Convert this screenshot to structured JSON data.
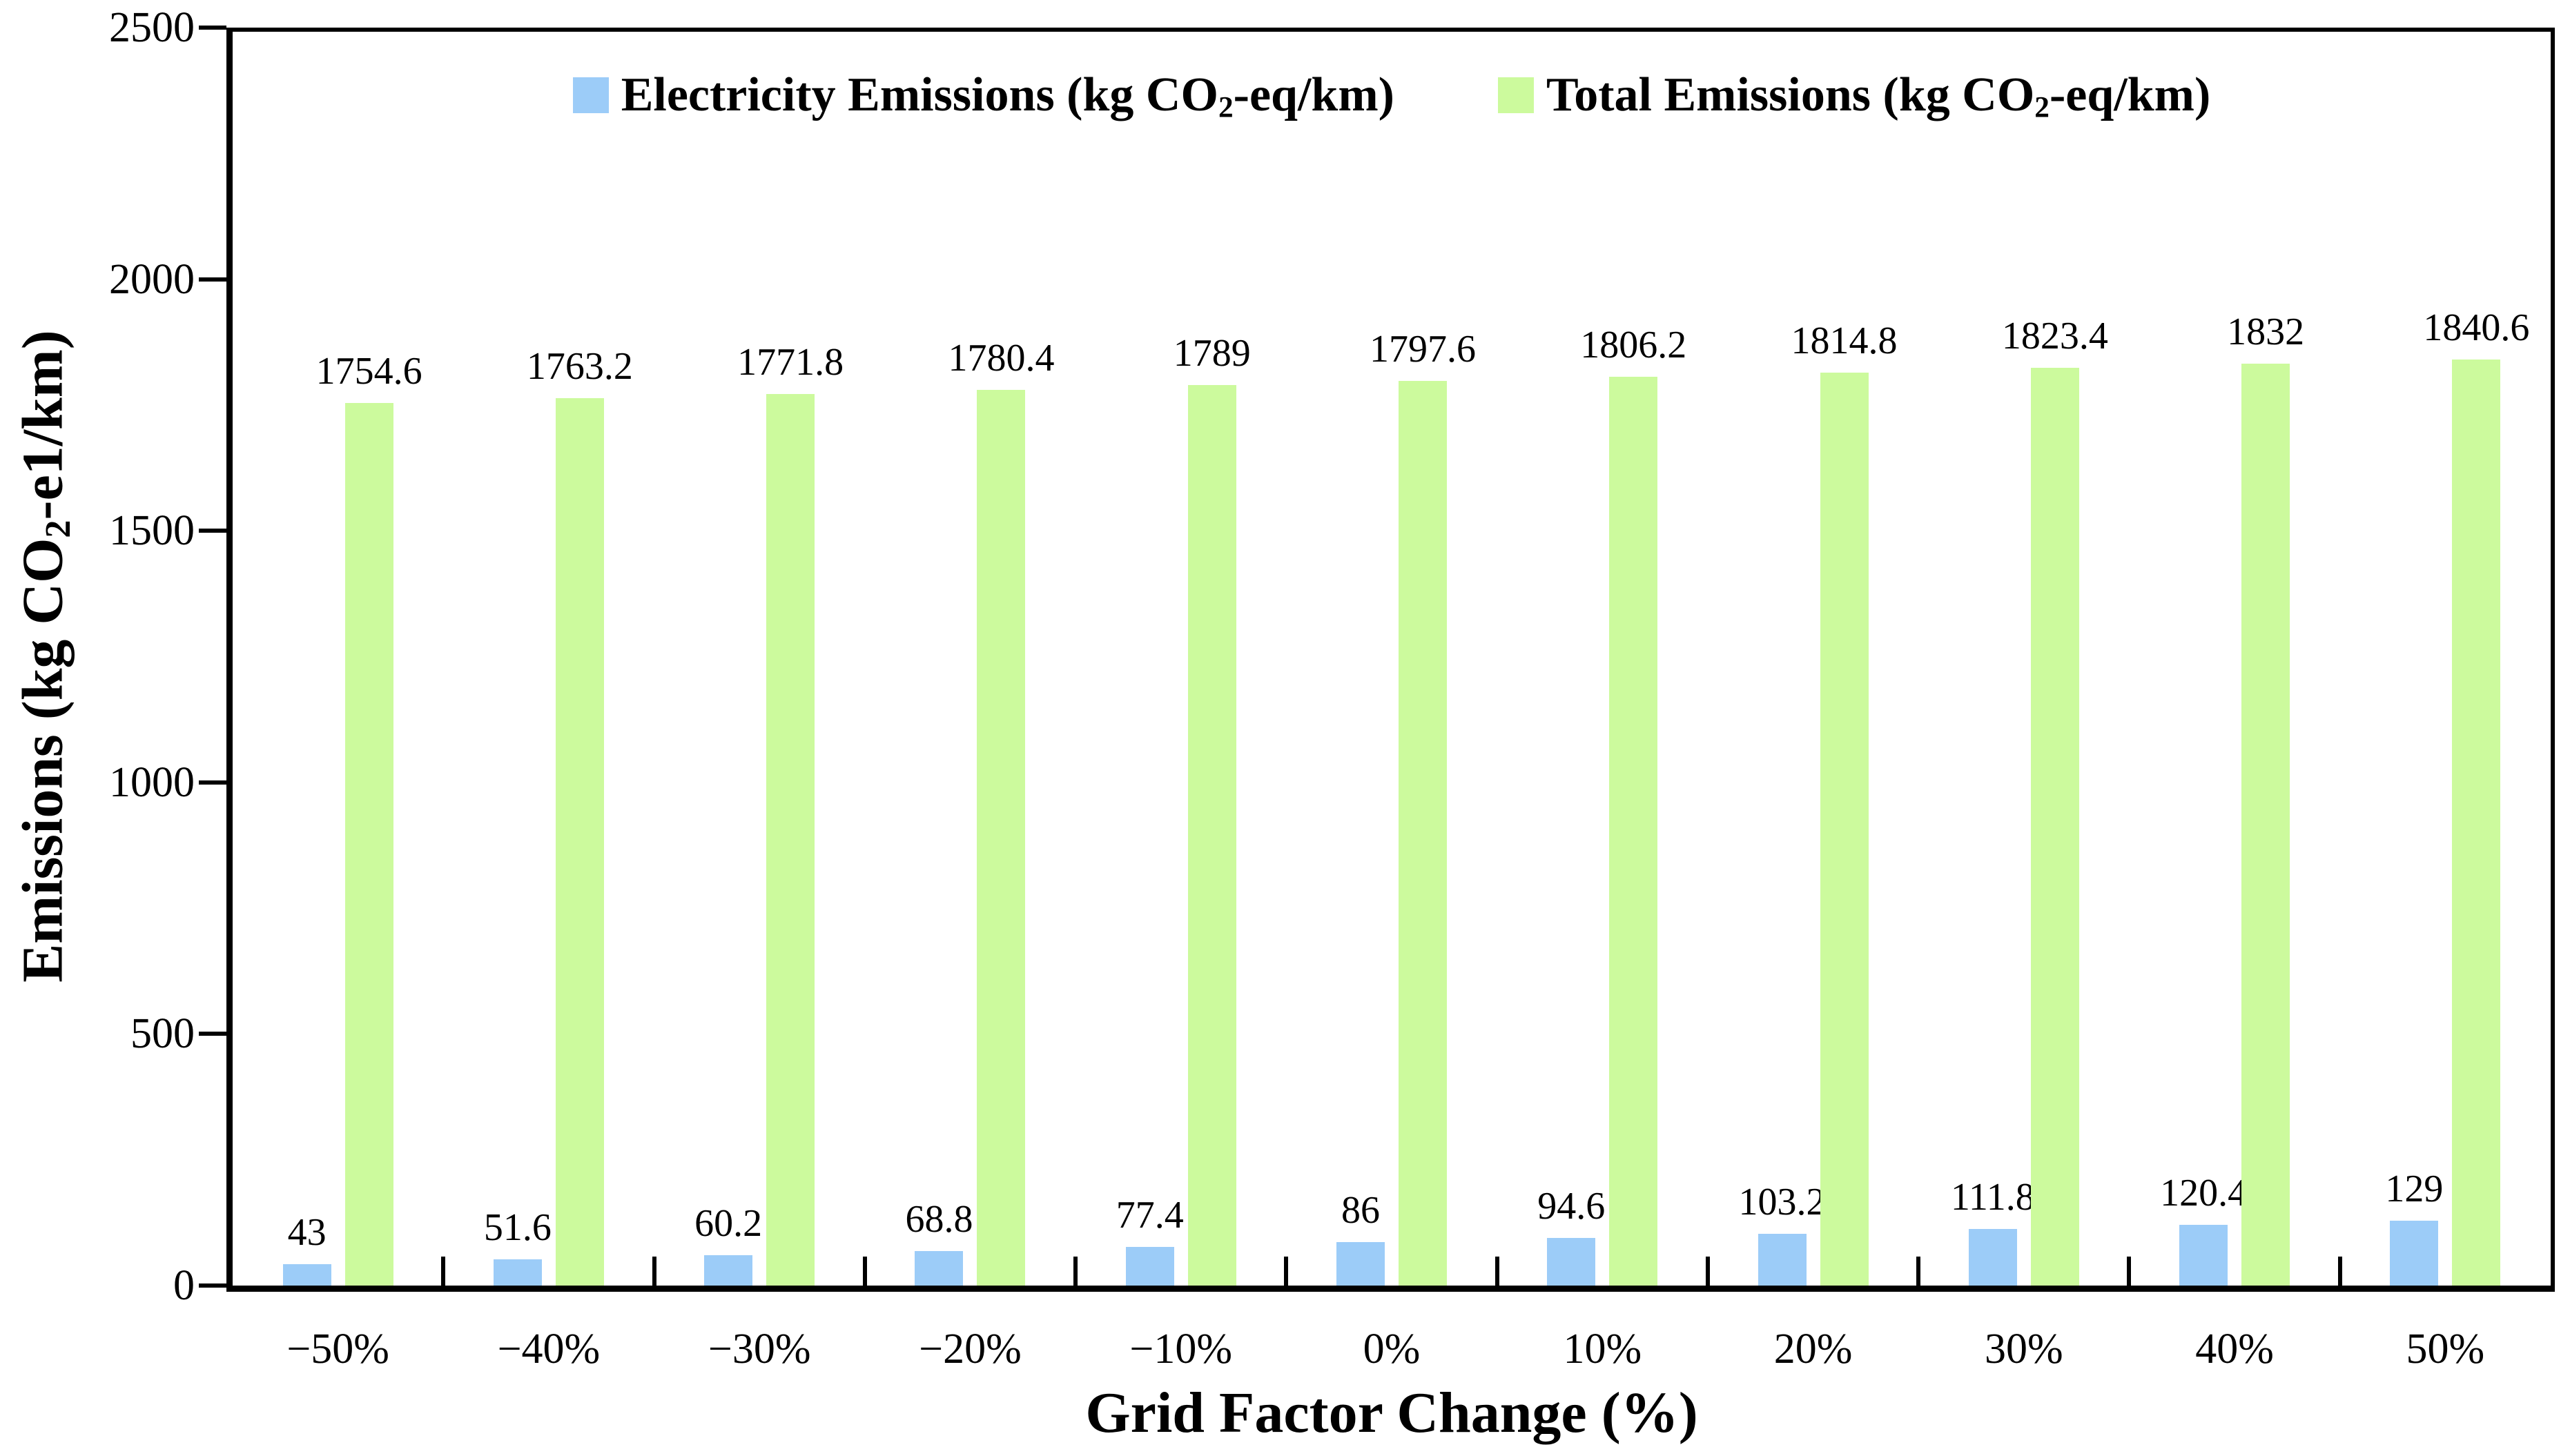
{
  "chart_data": {
    "type": "bar",
    "title": "",
    "xlabel": "Grid Factor Change (%)",
    "ylabel": "Emissions (kg CO₂-e1/km)",
    "ylim": [
      0,
      2500
    ],
    "y_ticks": [
      0,
      500,
      1000,
      1500,
      2000,
      2500
    ],
    "grid": false,
    "legend_position": "top-center",
    "categories": [
      "−50%",
      "−40%",
      "−30%",
      "−20%",
      "−10%",
      "0%",
      "10%",
      "20%",
      "30%",
      "40%",
      "50%"
    ],
    "series": [
      {
        "name": "Electricity Emissions (kg CO₂-eq/km)",
        "color": "#9CCCF8",
        "values": [
          43,
          51.6,
          60.2,
          68.8,
          77.4,
          86,
          94.6,
          103.2,
          111.8,
          120.4,
          129
        ]
      },
      {
        "name": "Total Emissions (kg CO₂-eq/km)",
        "color": "#CCFA9D",
        "values": [
          1754.6,
          1763.2,
          1771.8,
          1780.4,
          1789,
          1797.6,
          1806.2,
          1814.8,
          1823.4,
          1832,
          1840.6
        ]
      }
    ],
    "data_labels_shown": true,
    "axis_color": "#000000",
    "background_color": "#ffffff"
  }
}
